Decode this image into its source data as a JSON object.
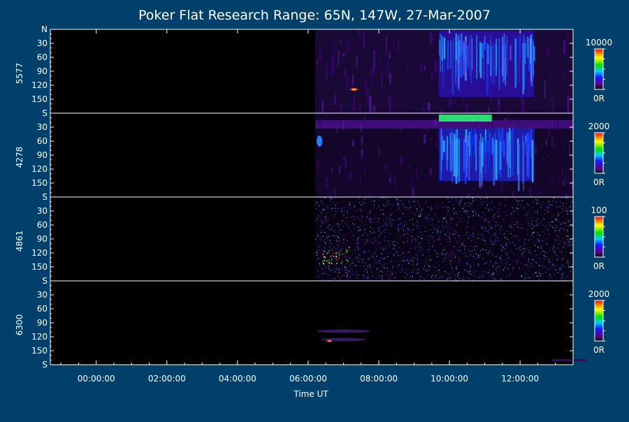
{
  "title": "Poker Flat Research Range: 65N, 147W, 27-Mar-2007",
  "xlabel": "Time UT",
  "x_ticks": [
    "00:00:00",
    "02:00:00",
    "04:00:00",
    "06:00:00",
    "08:00:00",
    "10:00:00",
    "12:00:00"
  ],
  "y_ticks": [
    "N",
    "30",
    "60",
    "90",
    "120",
    "150",
    "S"
  ],
  "colorbar_min_label": "0R",
  "colors": {
    "background": "#00406a",
    "plot_background": "#000000",
    "axis": "#ffffff",
    "text": "#ffffff"
  },
  "chart_data": {
    "type": "heatmap",
    "title": "Poker Flat Research Range: 65N, 147W, 27-Mar-2007",
    "xlabel": "Time UT",
    "x_tick_labels": [
      "00:00:00",
      "02:00:00",
      "04:00:00",
      "06:00:00",
      "08:00:00",
      "10:00:00",
      "12:00:00"
    ],
    "y_tick_labels": [
      "N",
      "30",
      "60",
      "90",
      "120",
      "150",
      "S"
    ],
    "xlim_hours": [
      -1.3,
      13.5
    ],
    "ylim_deg": [
      0,
      180
    ],
    "colorscale": "rainbow",
    "panels": [
      {
        "name": "5577",
        "colorbar_max": "10000",
        "colorbar_min": "0R",
        "data_start_hour": 6.2
      },
      {
        "name": "4278",
        "colorbar_max": "2000",
        "colorbar_min": "0R",
        "data_start_hour": 6.2
      },
      {
        "name": "4861",
        "colorbar_max": "100",
        "colorbar_min": "0R",
        "data_start_hour": 6.2
      },
      {
        "name": "6300",
        "colorbar_max": "2000",
        "colorbar_min": "0R",
        "data_start_hour": 6.2
      }
    ]
  }
}
